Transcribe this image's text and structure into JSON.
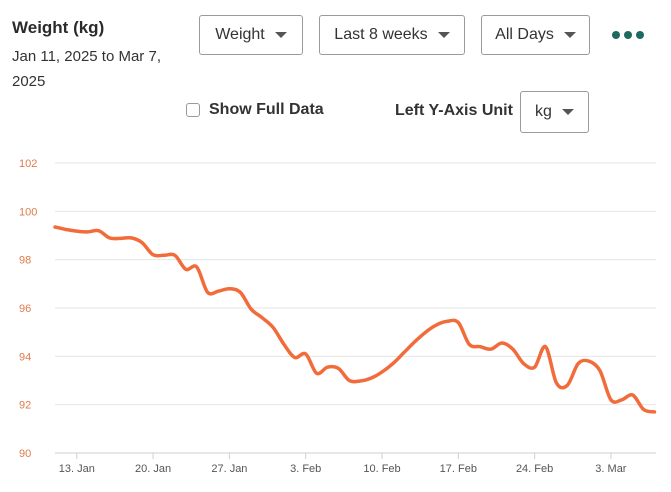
{
  "header": {
    "title": "Weight (kg)",
    "date_range": "Jan 11, 2025 to Mar 7, 2025"
  },
  "controls": {
    "metric_select": "Weight",
    "range_select": "Last 8 weeks",
    "days_select": "All Days",
    "more_icon": "more-dots-icon",
    "show_full_data_label": "Show Full Data",
    "show_full_data_checked": false,
    "unit_label": "Left Y-Axis Unit",
    "unit_select": "kg"
  },
  "colors": {
    "line": "#f26b3a",
    "y_tick": "#e07a4a",
    "grid": "#e6e6e6",
    "more_dots": "#1d6b5f"
  },
  "chart_data": {
    "type": "line",
    "title": "",
    "xlabel": "",
    "ylabel": "",
    "ylim": [
      90,
      102
    ],
    "yticks": [
      90,
      92,
      94,
      96,
      98,
      100,
      102
    ],
    "xticks": [
      "13. Jan",
      "20. Jan",
      "27. Jan",
      "3. Feb",
      "10. Feb",
      "17. Feb",
      "24. Feb",
      "3. Mar"
    ],
    "grid": true,
    "series": [
      {
        "x": [
          "2025-01-11",
          "2025-01-12",
          "2025-01-13",
          "2025-01-14",
          "2025-01-15",
          "2025-01-16",
          "2025-01-17",
          "2025-01-18",
          "2025-01-19",
          "2025-01-20",
          "2025-01-21",
          "2025-01-22",
          "2025-01-23",
          "2025-01-24",
          "2025-01-25",
          "2025-01-26",
          "2025-01-27",
          "2025-01-28",
          "2025-01-29",
          "2025-01-30",
          "2025-01-31",
          "2025-02-01",
          "2025-02-02",
          "2025-02-03",
          "2025-02-04",
          "2025-02-05",
          "2025-02-06",
          "2025-02-07",
          "2025-02-08",
          "2025-02-09",
          "2025-02-10",
          "2025-02-11",
          "2025-02-12",
          "2025-02-13",
          "2025-02-14",
          "2025-02-15",
          "2025-02-16",
          "2025-02-17",
          "2025-02-18",
          "2025-02-19",
          "2025-02-20",
          "2025-02-21",
          "2025-02-22",
          "2025-02-23",
          "2025-02-24",
          "2025-02-25",
          "2025-02-26",
          "2025-02-27",
          "2025-02-28",
          "2025-03-01",
          "2025-03-02",
          "2025-03-03",
          "2025-03-04",
          "2025-03-05",
          "2025-03-06",
          "2025-03-07"
        ],
        "values": [
          99.35,
          99.25,
          99.18,
          99.15,
          99.2,
          98.9,
          98.88,
          98.9,
          98.7,
          98.2,
          98.18,
          98.18,
          97.6,
          97.7,
          96.65,
          96.7,
          96.8,
          96.65,
          95.95,
          95.6,
          95.2,
          94.5,
          93.95,
          94.1,
          93.3,
          93.55,
          93.5,
          93.0,
          92.98,
          93.1,
          93.35,
          93.7,
          94.15,
          94.6,
          95.0,
          95.3,
          95.45,
          95.4,
          94.5,
          94.4,
          94.3,
          94.55,
          94.3,
          93.7,
          93.55,
          94.4,
          92.9,
          92.8,
          93.7,
          93.8,
          93.4,
          92.2,
          92.2,
          92.4,
          91.8,
          91.7
        ]
      }
    ]
  }
}
